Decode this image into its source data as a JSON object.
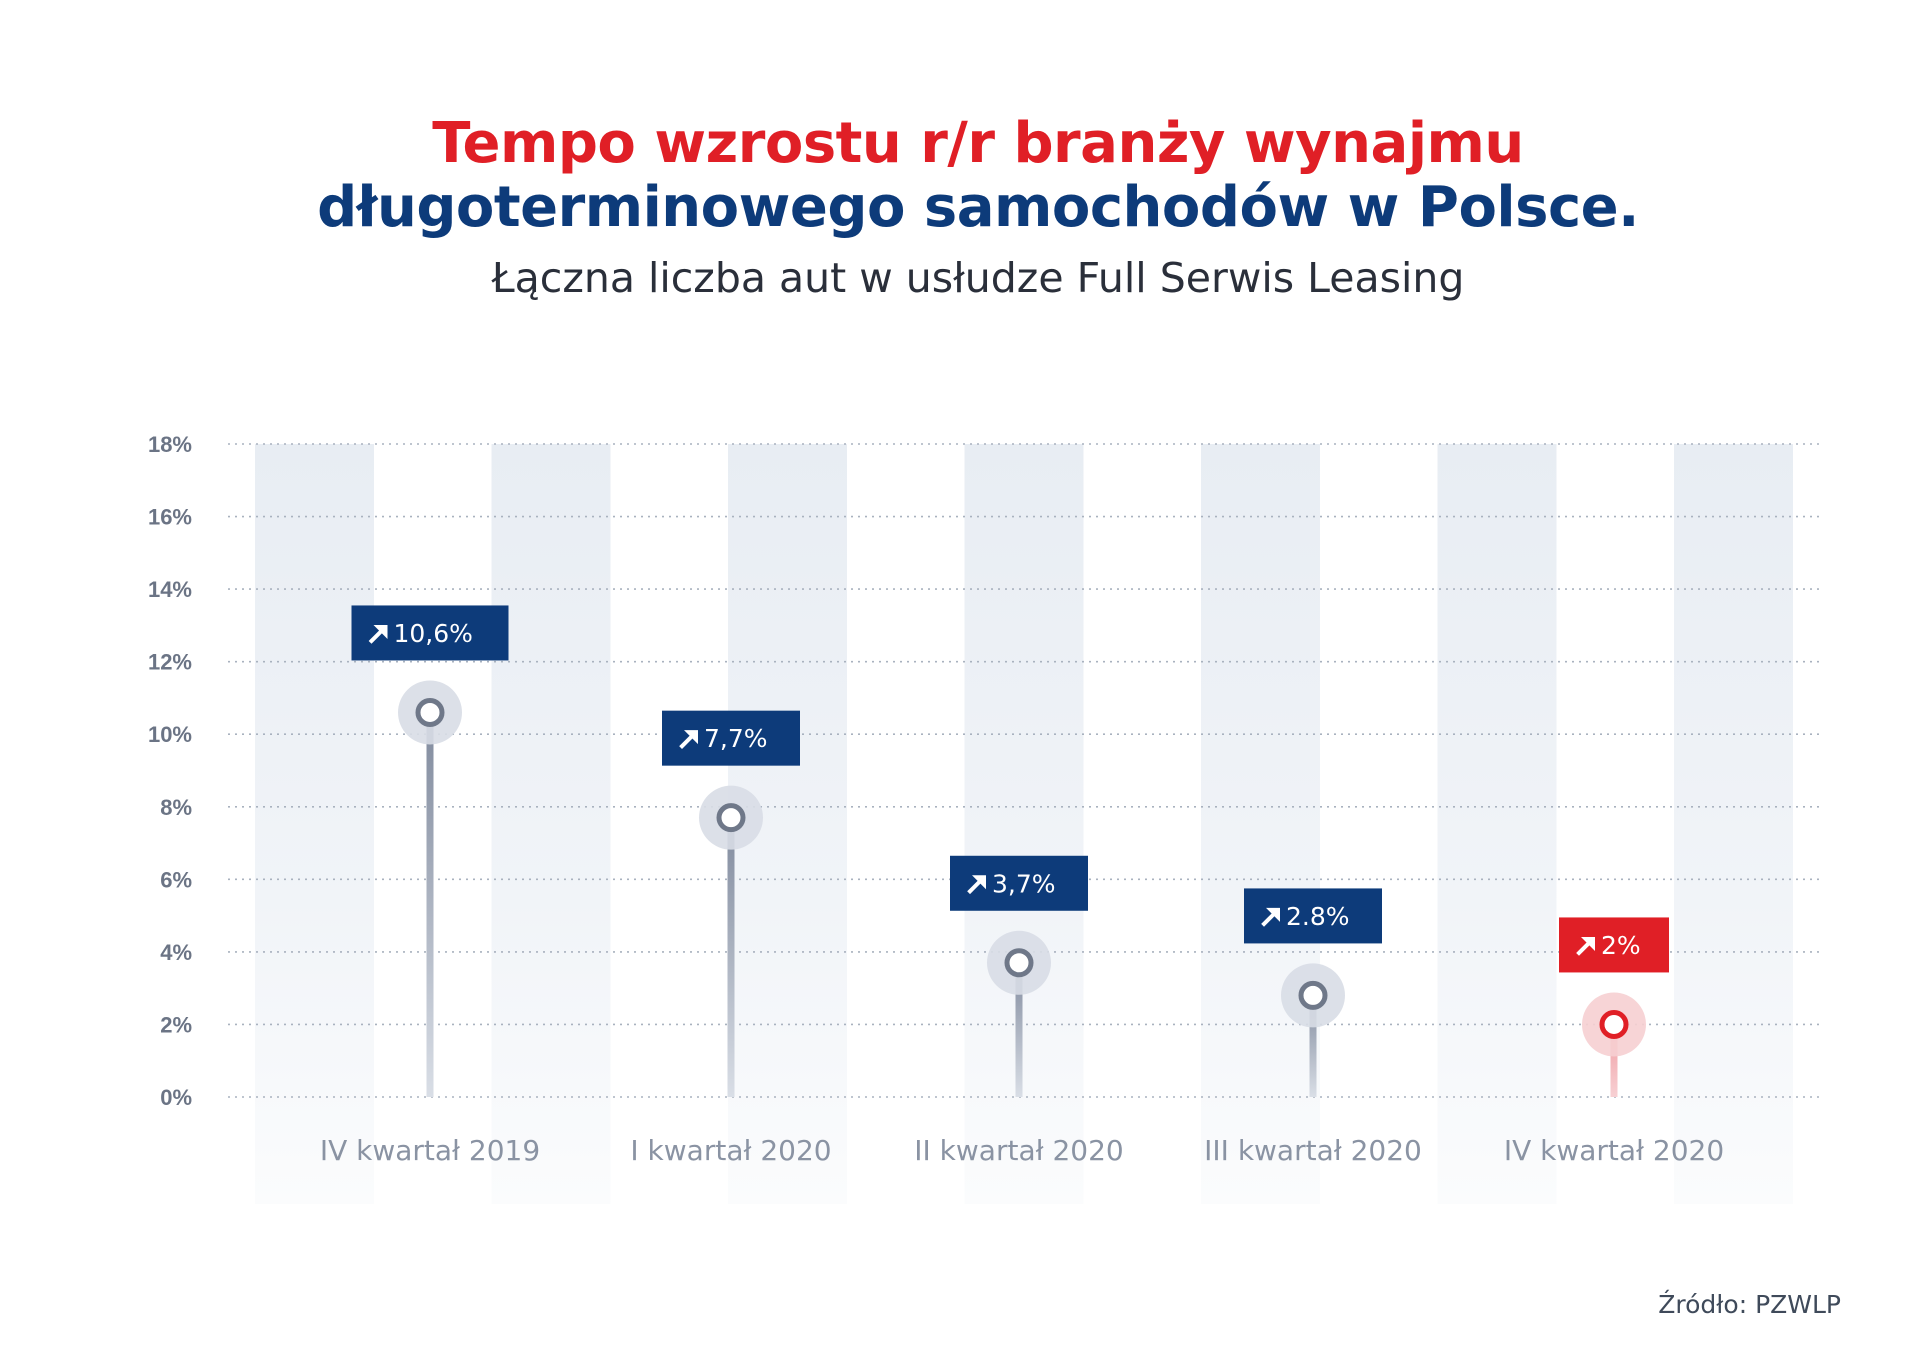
{
  "title_line1": "Tempo wzrostu r/r branży wynajmu",
  "title_line2": "długoterminowego samochodów w Polsce.",
  "subtitle": "Łączna liczba aut w usłudze Full Serwis Leasing",
  "source": "Źródło: PZWLP",
  "colors": {
    "navy": "#0d3b7a",
    "red": "#e01f26",
    "stem": "#8a94a6"
  },
  "chart_data": {
    "type": "scatter",
    "categories": [
      "IV kwartał 2019",
      "I kwartał 2020",
      "II kwartał 2020",
      "III kwartał 2020",
      "IV kwartał 2020"
    ],
    "values": [
      10.6,
      7.7,
      3.7,
      2.8,
      2
    ],
    "value_labels": [
      "10,6%",
      "7,7%",
      "3,7%",
      "2.8%",
      "2%"
    ],
    "highlight_index": 4,
    "ylim": [
      0,
      18
    ],
    "yticks": [
      "0%",
      "2%",
      "4%",
      "6%",
      "8%",
      "10%",
      "12%",
      "14%",
      "16%",
      "18%"
    ],
    "xlabel": "",
    "ylabel": "",
    "grid": true
  }
}
